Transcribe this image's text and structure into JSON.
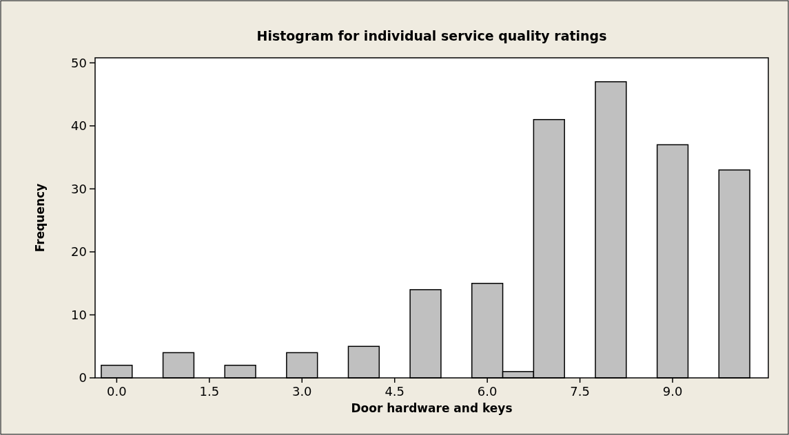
{
  "chart_data": {
    "type": "histogram",
    "title": "Histogram for individual service quality ratings",
    "xlabel": "Door hardware and keys",
    "ylabel": "Frequency",
    "bins": [
      -0.25,
      0.25,
      0.75,
      1.25,
      1.75,
      2.25,
      2.75,
      3.25,
      3.75,
      4.25,
      4.75,
      5.25,
      5.75,
      6.25,
      6.75,
      7.25,
      7.75,
      8.25,
      8.75,
      9.25,
      9.75,
      10.25
    ],
    "values": [
      2,
      0,
      4,
      0,
      2,
      0,
      4,
      0,
      5,
      0,
      14,
      0,
      15,
      1,
      41,
      0,
      47,
      0,
      37,
      0,
      33
    ],
    "color": "#c0c0c0",
    "xlim": [
      -0.35,
      10.55
    ],
    "xticks": [
      {
        "value": 0,
        "label": "0.0"
      },
      {
        "value": 1.5,
        "label": "1.5"
      },
      {
        "value": 3,
        "label": "3.0"
      },
      {
        "value": 4.5,
        "label": "4.5"
      },
      {
        "value": 6,
        "label": "6.0"
      },
      {
        "value": 7.5,
        "label": "7.5"
      },
      {
        "value": 9,
        "label": "9.0"
      }
    ],
    "ylim": [
      0,
      50.8
    ],
    "yticks": [
      0,
      10,
      20,
      30,
      40,
      50
    ],
    "grid": false
  }
}
